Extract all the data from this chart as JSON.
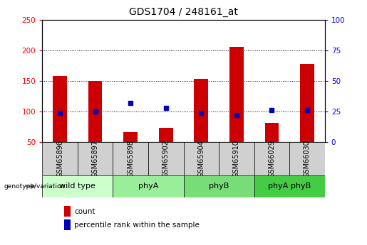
{
  "title": "GDS1704 / 248161_at",
  "samples": [
    "GSM65896",
    "GSM65897",
    "GSM65898",
    "GSM65902",
    "GSM65904",
    "GSM65910",
    "GSM66029",
    "GSM66030"
  ],
  "counts": [
    158,
    150,
    66,
    73,
    153,
    205,
    82,
    178
  ],
  "percentile_ranks": [
    24,
    25,
    32,
    28,
    24,
    22,
    26,
    26
  ],
  "groups": [
    {
      "label": "wild type",
      "start": 0,
      "end": 2,
      "color": "#ccffcc"
    },
    {
      "label": "phyA",
      "start": 2,
      "end": 4,
      "color": "#99ee99"
    },
    {
      "label": "phyB",
      "start": 4,
      "end": 6,
      "color": "#77dd77"
    },
    {
      "label": "phyA phyB",
      "start": 6,
      "end": 8,
      "color": "#44cc44"
    }
  ],
  "ylim_left": [
    50,
    250
  ],
  "ylim_right": [
    0,
    100
  ],
  "yticks_left": [
    50,
    100,
    150,
    200,
    250
  ],
  "yticks_right": [
    0,
    25,
    50,
    75,
    100
  ],
  "bar_color": "#cc0000",
  "dot_color": "#0000bb",
  "background_color": "#ffffff",
  "plot_bg": "#ffffff",
  "sample_box_color": "#d0d0d0",
  "title_fontsize": 10,
  "tick_fontsize": 7.5,
  "group_fontsize": 8,
  "genotype_label": "genotype/variation",
  "legend_count": "count",
  "legend_percentile": "percentile rank within the sample",
  "bar_width": 0.4
}
